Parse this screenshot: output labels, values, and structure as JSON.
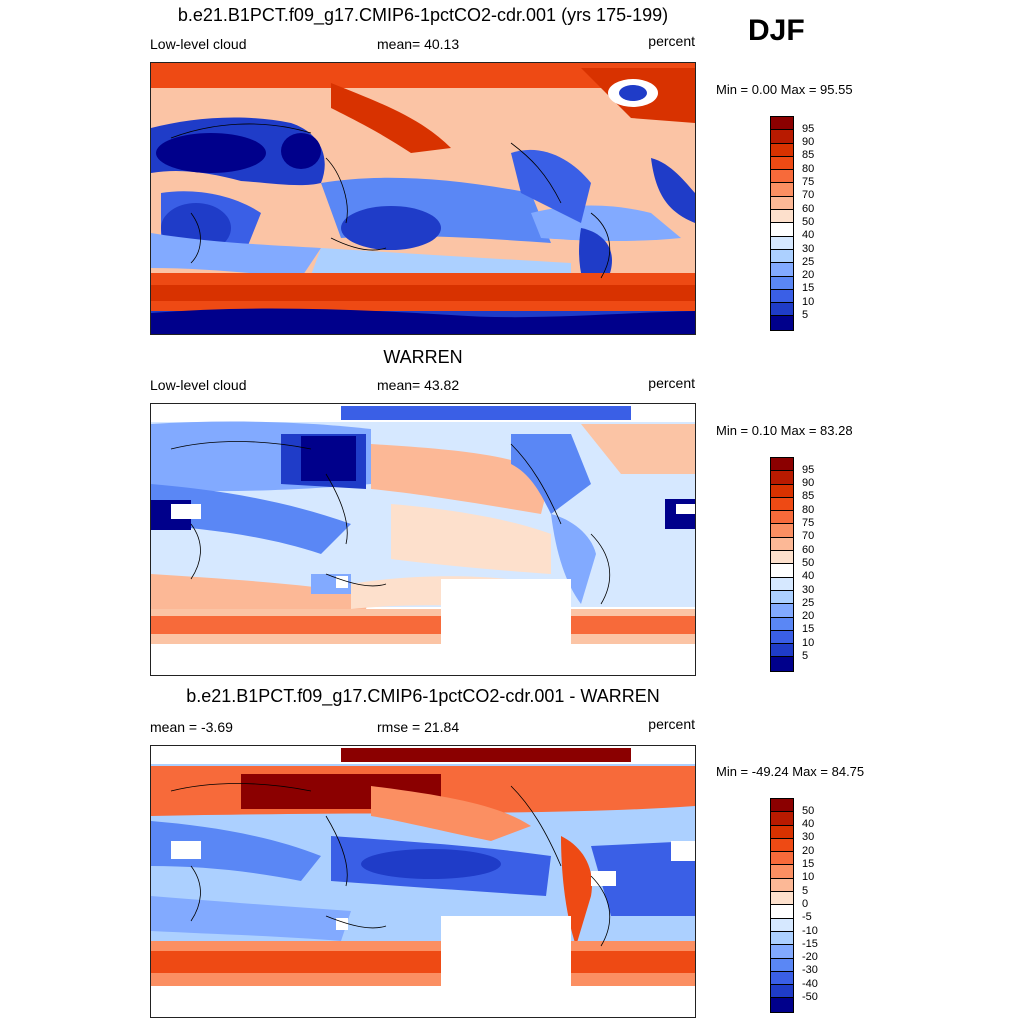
{
  "season": "DJF",
  "panels": [
    {
      "title": "b.e21.B1PCT.f09_g17.CMIP6-1pctCO2-cdr.001 (yrs 175-199)",
      "left_label": "Low-level cloud",
      "center_label": "mean=  40.13",
      "right_label": "percent",
      "minmax": "Min =   0.00 Max =  95.55",
      "colorbar": {
        "labels": [
          "95",
          "90",
          "85",
          "80",
          "75",
          "70",
          "60",
          "50",
          "40",
          "30",
          "25",
          "20",
          "15",
          "10",
          "5"
        ],
        "colors": [
          "#8b0000",
          "#b81a00",
          "#d83200",
          "#ee4a14",
          "#f76a3a",
          "#fb8f62",
          "#fcb896",
          "#fde0cc",
          "#ffffff",
          "#d6e8ff",
          "#acd0ff",
          "#82aaff",
          "#5a87f5",
          "#3a5fe6",
          "#1f3cc8",
          "#00008b"
        ]
      },
      "map_style": "model"
    },
    {
      "title": "WARREN",
      "left_label": "Low-level cloud",
      "center_label": "mean=  43.82",
      "right_label": "percent",
      "minmax": "Min =   0.10 Max =  83.28",
      "colorbar": {
        "labels": [
          "95",
          "90",
          "85",
          "80",
          "75",
          "70",
          "60",
          "50",
          "40",
          "30",
          "25",
          "20",
          "15",
          "10",
          "5"
        ],
        "colors": [
          "#8b0000",
          "#b81a00",
          "#d83200",
          "#ee4a14",
          "#f76a3a",
          "#fb8f62",
          "#fcb896",
          "#fde0cc",
          "#ffffff",
          "#d6e8ff",
          "#acd0ff",
          "#82aaff",
          "#5a87f5",
          "#3a5fe6",
          "#1f3cc8",
          "#00008b"
        ]
      },
      "map_style": "obs"
    },
    {
      "title": "b.e21.B1PCT.f09_g17.CMIP6-1pctCO2-cdr.001 - WARREN",
      "left_label": "mean =  -3.69",
      "center_label": "rmse =  21.84",
      "right_label": "percent",
      "minmax": "Min = -49.24 Max =  84.75",
      "colorbar": {
        "labels": [
          "50",
          "40",
          "30",
          "20",
          "15",
          "10",
          "5",
          "0",
          "-5",
          "-10",
          "-15",
          "-20",
          "-30",
          "-40",
          "-50"
        ],
        "colors": [
          "#8b0000",
          "#b81a00",
          "#d83200",
          "#ee4a14",
          "#f76a3a",
          "#fb8f62",
          "#fcb896",
          "#fde0cc",
          "#ffffff",
          "#d6e8ff",
          "#acd0ff",
          "#82aaff",
          "#5a87f5",
          "#3a5fe6",
          "#1f3cc8",
          "#00008b"
        ]
      },
      "map_style": "diff"
    }
  ]
}
